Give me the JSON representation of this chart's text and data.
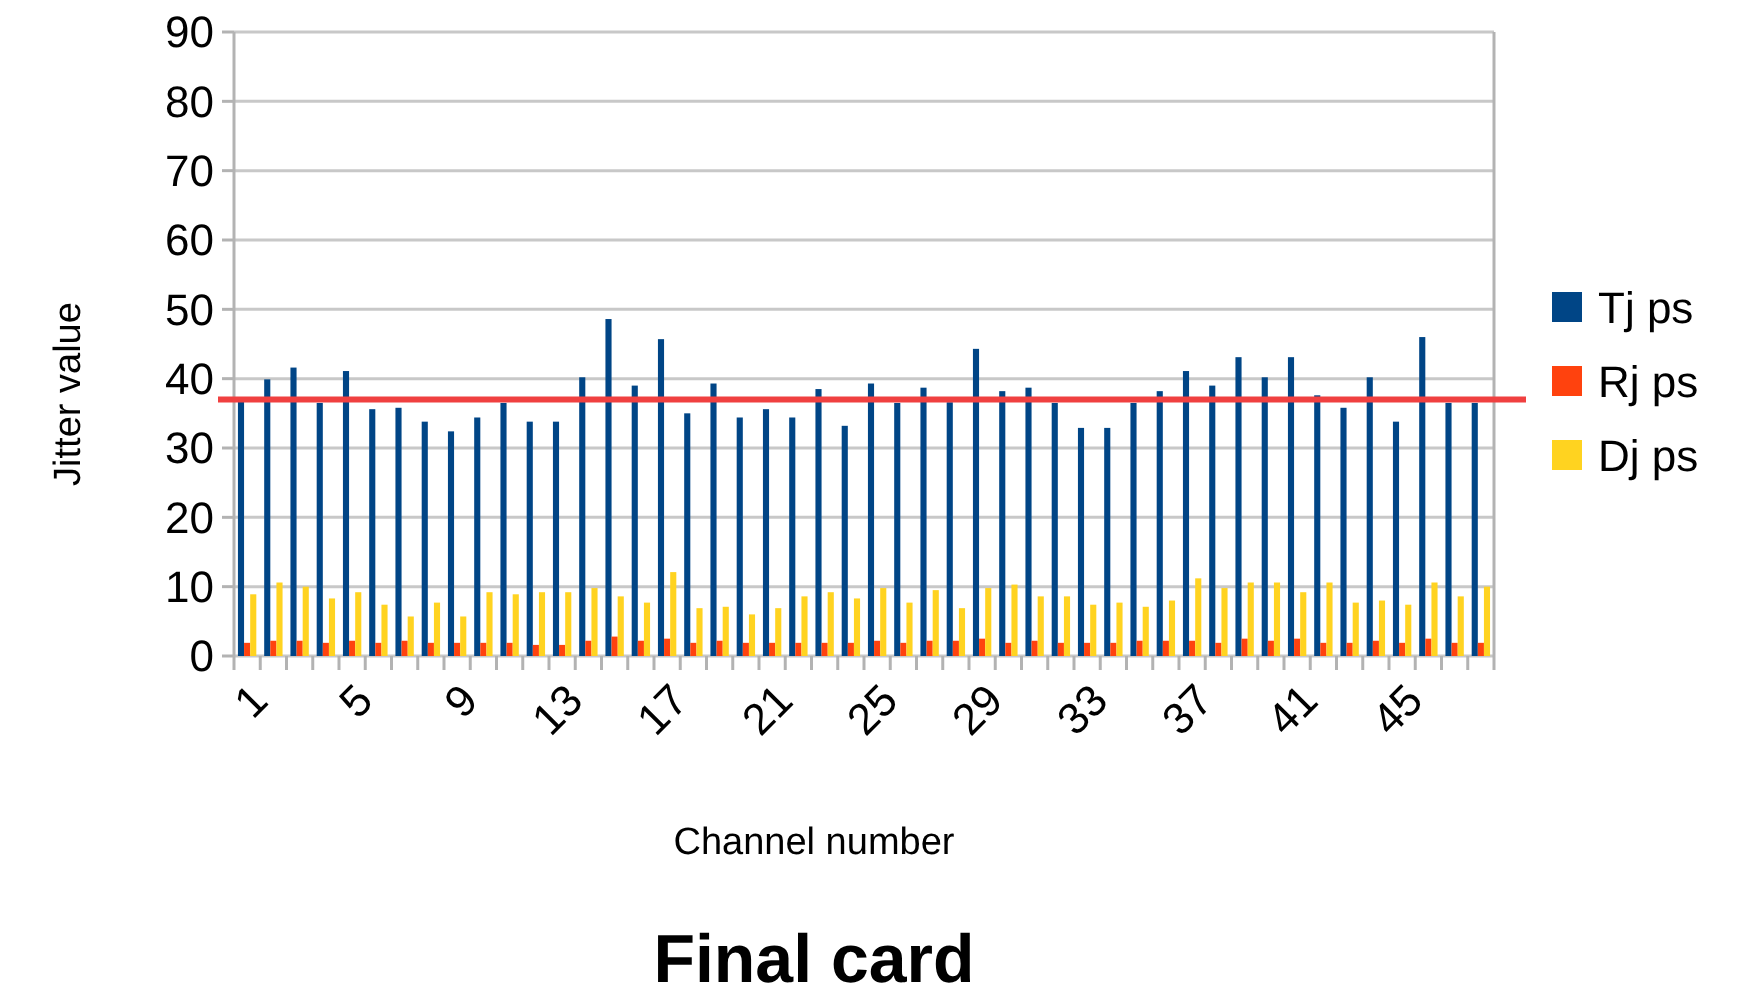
{
  "chart_data": {
    "type": "bar",
    "title": "Final card",
    "xlabel": "Channel number",
    "ylabel": "Jitter value",
    "categories": [
      "1",
      null,
      null,
      null,
      "5",
      null,
      null,
      null,
      "9",
      null,
      null,
      null,
      "13",
      null,
      null,
      null,
      "17",
      null,
      null,
      null,
      "21",
      null,
      null,
      null,
      "25",
      null,
      null,
      null,
      "29",
      null,
      null,
      null,
      "33",
      null,
      null,
      null,
      "37",
      null,
      null,
      null,
      "41",
      null,
      null,
      null,
      "45",
      null,
      null,
      null
    ],
    "series": [
      {
        "name": "Tj ps",
        "color": "#004586",
        "values": [
          36.8,
          39.9,
          41.6,
          36.5,
          41.1,
          35.6,
          35.8,
          33.8,
          32.4,
          34.4,
          36.5,
          33.8,
          33.8,
          40.2,
          48.6,
          39.0,
          45.7,
          35.0,
          39.3,
          34.4,
          35.6,
          34.4,
          38.5,
          33.2,
          39.3,
          36.5,
          38.7,
          36.6,
          44.3,
          38.2,
          38.7,
          36.5,
          32.9,
          32.9,
          36.5,
          38.2,
          41.1,
          39.0,
          43.1,
          40.2,
          43.1,
          37.6,
          35.8,
          40.2,
          33.8,
          46.0,
          36.5,
          36.5
        ]
      },
      {
        "name": "Rj ps",
        "color": "#ff420e",
        "values": [
          1.9,
          2.2,
          2.2,
          1.9,
          2.2,
          1.9,
          2.2,
          1.9,
          1.9,
          1.9,
          1.9,
          1.6,
          1.6,
          2.2,
          2.8,
          2.2,
          2.5,
          1.9,
          2.2,
          1.9,
          1.9,
          1.9,
          1.9,
          1.9,
          2.2,
          1.9,
          2.2,
          2.2,
          2.5,
          1.9,
          2.2,
          1.9,
          1.9,
          1.9,
          2.2,
          2.2,
          2.2,
          1.9,
          2.5,
          2.2,
          2.5,
          1.9,
          1.9,
          2.2,
          1.9,
          2.5,
          1.9,
          1.9
        ]
      },
      {
        "name": "Dj ps",
        "color": "#ffd320",
        "values": [
          8.9,
          10.6,
          10.0,
          8.3,
          9.2,
          7.4,
          5.7,
          7.7,
          5.7,
          9.2,
          8.9,
          9.2,
          9.2,
          9.8,
          8.6,
          7.7,
          12.1,
          6.9,
          7.1,
          6.0,
          6.9,
          8.6,
          9.2,
          8.3,
          9.8,
          7.7,
          9.5,
          6.9,
          9.8,
          10.3,
          8.6,
          8.6,
          7.4,
          7.7,
          7.1,
          8.0,
          11.2,
          9.8,
          10.6,
          10.6,
          9.2,
          10.6,
          7.7,
          8.0,
          7.4,
          10.6,
          8.6,
          10.0
        ]
      }
    ],
    "ylim": [
      0,
      90
    ],
    "yticks": [
      0,
      10,
      20,
      30,
      40,
      50,
      60,
      70,
      80,
      90
    ],
    "grid": "y",
    "legend": "right",
    "ref_lines": [
      {
        "axis": "y",
        "value": 37,
        "color": "#f04040"
      }
    ]
  }
}
